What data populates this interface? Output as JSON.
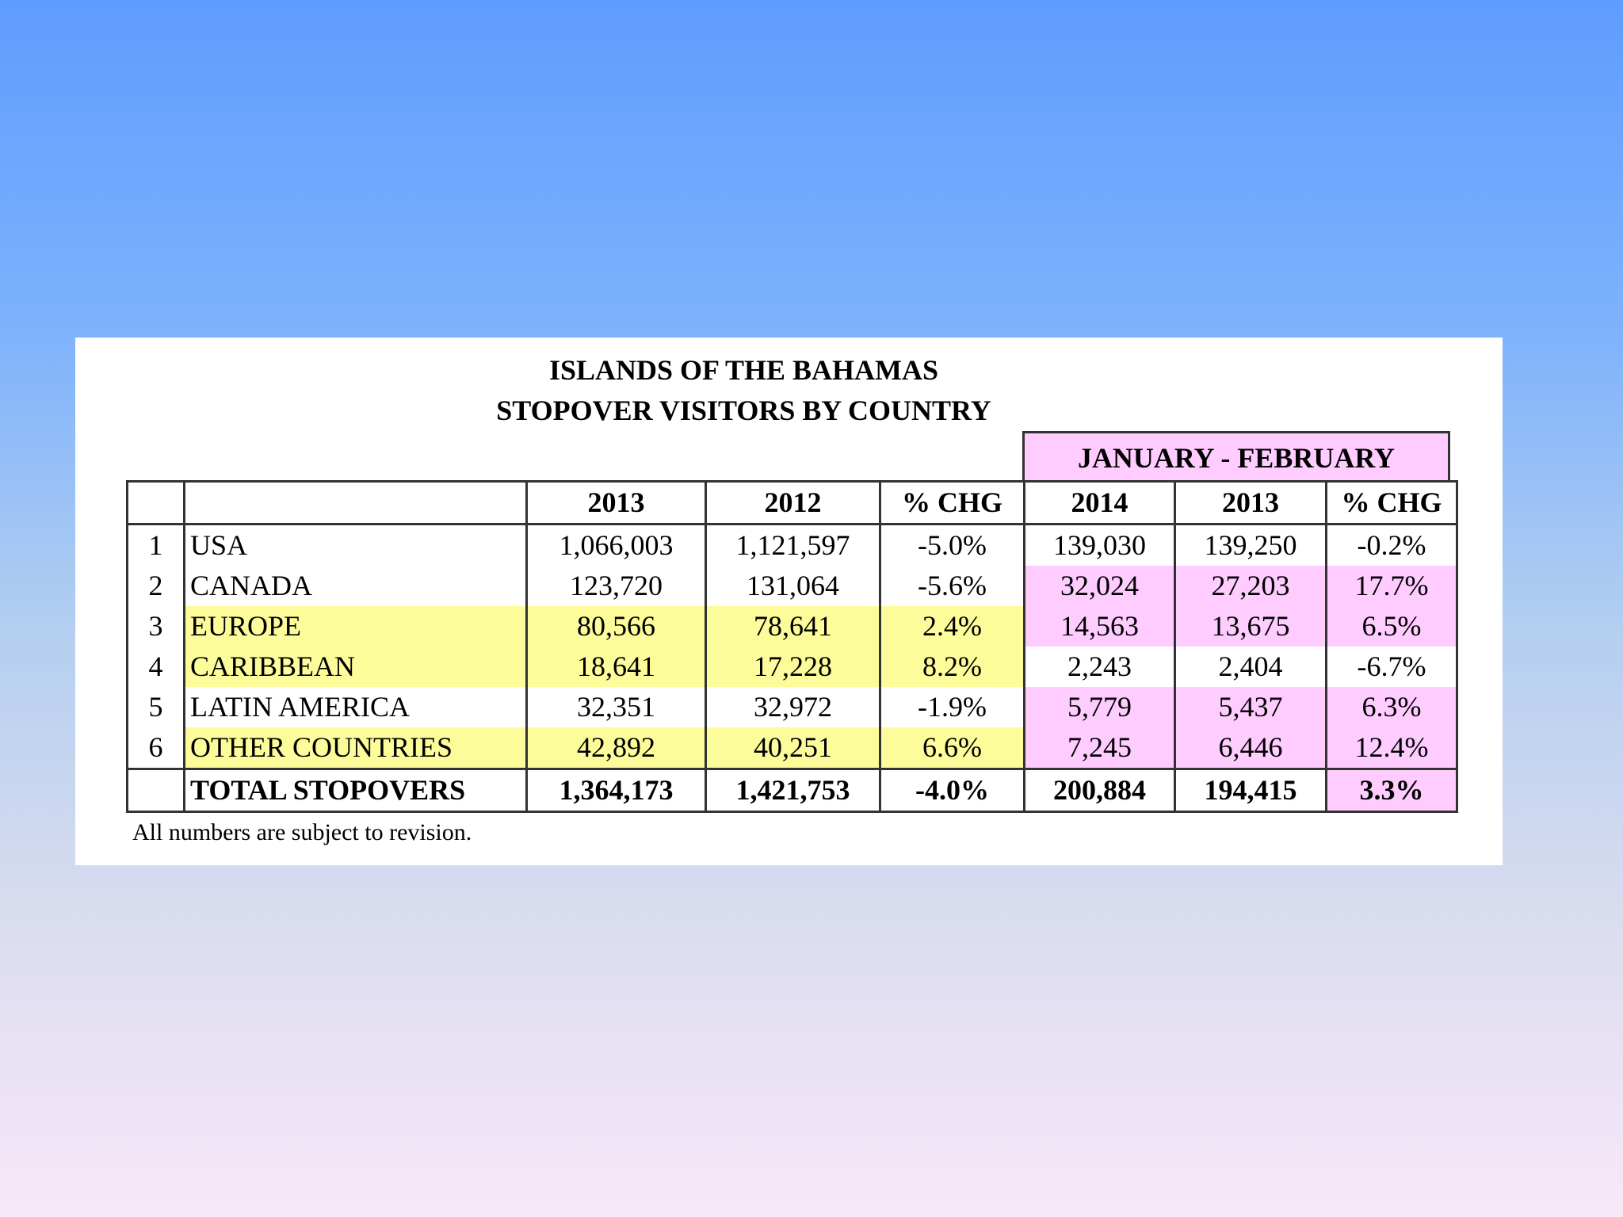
{
  "title_line1": "ISLANDS OF THE BAHAMAS",
  "title_line2": "STOPOVER VISITORS BY COUNTRY",
  "period_header": "JANUARY - FEBRUARY",
  "columns": [
    "",
    "",
    "2013",
    "2012",
    "% CHG",
    "2014",
    "2013",
    "% CHG"
  ],
  "rows": [
    {
      "idx": "1",
      "name": "USA",
      "v2013": "1,066,003",
      "v2012": "1,121,597",
      "chg": "-5.0%",
      "p2014": "139,030",
      "p2013": "139,250",
      "pchg": "-0.2%"
    },
    {
      "idx": "2",
      "name": "CANADA",
      "v2013": "123,720",
      "v2012": "131,064",
      "chg": "-5.6%",
      "p2014": "32,024",
      "p2013": "27,203",
      "pchg": "17.7%"
    },
    {
      "idx": "3",
      "name": "EUROPE",
      "v2013": "80,566",
      "v2012": "78,641",
      "chg": "2.4%",
      "p2014": "14,563",
      "p2013": "13,675",
      "pchg": "6.5%"
    },
    {
      "idx": "4",
      "name": "CARIBBEAN",
      "v2013": "18,641",
      "v2012": "17,228",
      "chg": "8.2%",
      "p2014": "2,243",
      "p2013": "2,404",
      "pchg": "-6.7%"
    },
    {
      "idx": "5",
      "name": "LATIN AMERICA",
      "v2013": "32,351",
      "v2012": "32,972",
      "chg": "-1.9%",
      "p2014": "5,779",
      "p2013": "5,437",
      "pchg": "6.3%"
    },
    {
      "idx": "6",
      "name": "OTHER COUNTRIES",
      "v2013": "42,892",
      "v2012": "40,251",
      "chg": "6.6%",
      "p2014": "7,245",
      "p2013": "6,446",
      "pchg": "12.4%"
    }
  ],
  "total": {
    "name": "TOTAL STOPOVERS",
    "v2013": "1,364,173",
    "v2012": "1,421,753",
    "chg": "-4.0%",
    "p2014": "200,884",
    "p2013": "194,415",
    "pchg": "3.3%"
  },
  "note": "All numbers are subject to revision.",
  "colors": {
    "highlight_yellow": "#fcfc9a",
    "highlight_pink": "#ffccff"
  }
}
